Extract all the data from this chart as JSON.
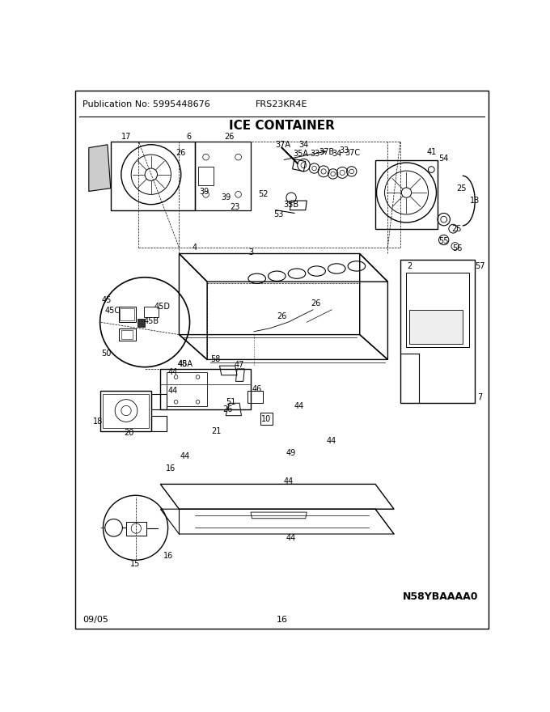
{
  "pub_no": "Publication No: 5995448676",
  "model": "FRS23KR4E",
  "title": "ICE CONTAINER",
  "date": "09/05",
  "page": "16",
  "diagram_id": "N58YBAAAA0",
  "bg_color": "#ffffff",
  "border_color": "#000000",
  "title_fontsize": 11,
  "header_fontsize": 8,
  "footer_fontsize": 8
}
